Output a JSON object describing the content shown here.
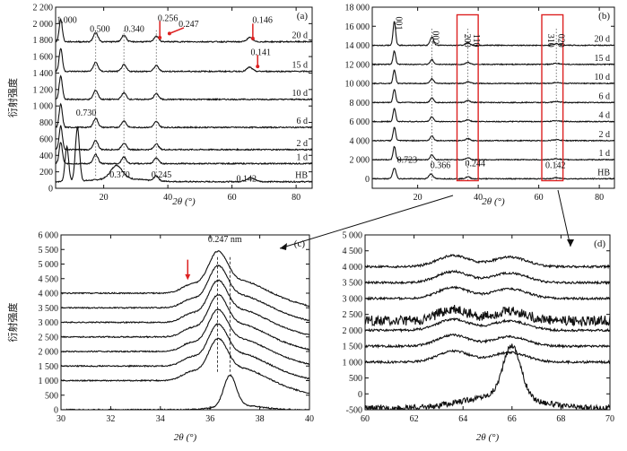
{
  "chart_data": [
    {
      "panel": "(a)",
      "type": "line",
      "ylabel": "衍射强度",
      "xlabel": "2θ (°)",
      "xlim": [
        5,
        85
      ],
      "ylim": [
        0,
        2200
      ],
      "xticks": [
        20,
        40,
        60,
        80
      ],
      "yticks": [
        0,
        200,
        400,
        600,
        800,
        1000,
        1200,
        1400,
        1600,
        1800,
        2000,
        2200
      ],
      "ytick_labels": [
        "0",
        "200",
        "400",
        "600",
        "800",
        "1 000",
        "1 200",
        "1 400",
        "1 600",
        "1 800",
        "2 000",
        "2 200"
      ],
      "series": [
        {
          "name": "HB",
          "offset": 80,
          "peaks": [
            [
              8.5,
              420,
              0.8
            ],
            [
              11.8,
              650,
              0.9
            ],
            [
              24,
              160,
              2.5
            ],
            [
              36.4,
              60,
              1
            ],
            [
              65.8,
              45,
              2
            ]
          ]
        },
        {
          "name": "1 d",
          "offset": 300,
          "peaks": [
            [
              6.6,
              260,
              0.7
            ],
            [
              17.5,
              110,
              1
            ],
            [
              26.3,
              80,
              1
            ],
            [
              36.4,
              70,
              1
            ]
          ]
        },
        {
          "name": "2 d",
          "offset": 470,
          "peaks": [
            [
              6.6,
              290,
              0.7
            ],
            [
              17.5,
              110,
              1
            ],
            [
              26.3,
              80,
              1
            ],
            [
              36.4,
              70,
              1
            ]
          ]
        },
        {
          "name": "6 d",
          "offset": 740,
          "peaks": [
            [
              6.6,
              280,
              0.7
            ],
            [
              17.5,
              110,
              1
            ],
            [
              26.3,
              80,
              1
            ],
            [
              36.4,
              70,
              1
            ]
          ]
        },
        {
          "name": "10 d",
          "offset": 1080,
          "peaks": [
            [
              6.6,
              280,
              0.7
            ],
            [
              17.5,
              110,
              1
            ],
            [
              26.3,
              80,
              1
            ],
            [
              36.4,
              70,
              1
            ]
          ]
        },
        {
          "name": "15 d",
          "offset": 1420,
          "peaks": [
            [
              6.6,
              280,
              0.7
            ],
            [
              17.5,
              110,
              1
            ],
            [
              26.3,
              80,
              1
            ],
            [
              36.4,
              70,
              1
            ],
            [
              65.5,
              50,
              1.2
            ]
          ]
        },
        {
          "name": "20 d",
          "offset": 1780,
          "peaks": [
            [
              6.6,
              270,
              0.7
            ],
            [
              17.5,
              110,
              1
            ],
            [
              26.3,
              80,
              1
            ],
            [
              36.4,
              70,
              1
            ],
            [
              65.5,
              50,
              1.2
            ]
          ]
        }
      ],
      "annotations": [
        {
          "text": "1.000",
          "x": 8.5,
          "y": 2010
        },
        {
          "text": "0.500",
          "x": 18.8,
          "y": 1900
        },
        {
          "text": "0.340",
          "x": 29.5,
          "y": 1900
        },
        {
          "text": "0.256",
          "x": 40,
          "y": 2030
        },
        {
          "text": "0.247",
          "x": 46.5,
          "y": 1960
        },
        {
          "text": "0.146",
          "x": 69.5,
          "y": 2010
        },
        {
          "text": "0.141",
          "x": 69,
          "y": 1620
        },
        {
          "text": "0.730",
          "x": 14.5,
          "y": 880
        },
        {
          "text": "0.370",
          "x": 25,
          "y": 130
        },
        {
          "text": "0.245",
          "x": 38,
          "y": 130
        },
        {
          "text": "0.142",
          "x": 64.5,
          "y": 80
        }
      ]
    },
    {
      "panel": "(b)",
      "type": "line",
      "xlabel": "2θ (°)",
      "xlim": [
        5,
        85
      ],
      "ylim": [
        -1000,
        18000
      ],
      "xticks": [
        20,
        40,
        60,
        80
      ],
      "yticks": [
        0,
        2000,
        4000,
        6000,
        8000,
        10000,
        12000,
        14000,
        16000,
        18000
      ],
      "ytick_labels": [
        "0",
        "2 000",
        "4 000",
        "6 000",
        "8 000",
        "10 000",
        "12 000",
        "14 000",
        "16 000",
        "18 000"
      ],
      "series": [
        {
          "name": "HB",
          "offset": 0,
          "peaks": [
            [
              12.3,
              1100,
              0.8
            ],
            [
              24.4,
              500,
              1
            ],
            [
              36.6,
              200,
              1
            ],
            [
              65.8,
              100,
              1.5
            ]
          ]
        },
        {
          "name": "1 d",
          "offset": 2000,
          "peaks": [
            [
              12.3,
              1400,
              0.6
            ],
            [
              24.7,
              500,
              0.8
            ],
            [
              36.6,
              200,
              1
            ],
            [
              65.8,
              100,
              1.5
            ]
          ]
        },
        {
          "name": "2 d",
          "offset": 4000,
          "peaks": [
            [
              12.3,
              1400,
              0.6
            ],
            [
              24.7,
              500,
              0.8
            ],
            [
              36.6,
              200,
              1
            ],
            [
              65.8,
              100,
              1.5
            ]
          ]
        },
        {
          "name": "4 d",
          "offset": 6000,
          "peaks": [
            [
              12.3,
              1400,
              0.6
            ],
            [
              24.7,
              500,
              0.8
            ],
            [
              36.6,
              200,
              1
            ],
            [
              65.8,
              100,
              1.5
            ]
          ]
        },
        {
          "name": "6 d",
          "offset": 8000,
          "peaks": [
            [
              12.3,
              1400,
              0.6
            ],
            [
              24.7,
              500,
              0.8
            ],
            [
              36.6,
              200,
              1
            ],
            [
              65.8,
              100,
              1.5
            ]
          ]
        },
        {
          "name": "10 d",
          "offset": 10000,
          "peaks": [
            [
              12.3,
              1400,
              0.6
            ],
            [
              24.7,
              500,
              0.8
            ],
            [
              36.6,
              200,
              1
            ],
            [
              65.8,
              100,
              1.5
            ]
          ]
        },
        {
          "name": "15 d",
          "offset": 12000,
          "peaks": [
            [
              12.3,
              1400,
              0.6
            ],
            [
              24.7,
              500,
              0.8
            ],
            [
              36.6,
              200,
              1
            ],
            [
              65.8,
              100,
              1.5
            ]
          ]
        },
        {
          "name": "20 d",
          "offset": 14000,
          "peaks": [
            [
              12.3,
              2500,
              0.6
            ],
            [
              24.7,
              900,
              0.8
            ],
            [
              36.6,
              300,
              1
            ],
            [
              65.8,
              150,
              1.5
            ]
          ]
        }
      ],
      "annotations": [
        {
          "text": "001",
          "x": 12.8,
          "y": 16300,
          "rotate": true
        },
        {
          "text": "002",
          "x": 25,
          "y": 14800,
          "rotate": true
        },
        {
          "text": "200",
          "x": 35.5,
          "y": 14500,
          "rotate": true
        },
        {
          "text": "110",
          "x": 38.5,
          "y": 14500,
          "rotate": true
        },
        {
          "text": "310",
          "x": 63,
          "y": 14500,
          "rotate": true
        },
        {
          "text": "020",
          "x": 66.5,
          "y": 14500,
          "rotate": true
        },
        {
          "text": "0.723",
          "x": 16.5,
          "y": 1700
        },
        {
          "text": "0.366",
          "x": 27.5,
          "y": 1100
        },
        {
          "text": "0.244",
          "x": 39,
          "y": 1300
        },
        {
          "text": "0.142",
          "x": 65.5,
          "y": 1100
        }
      ],
      "boxes": [
        [
          33,
          40
        ],
        [
          61,
          68
        ]
      ]
    },
    {
      "panel": "(c)",
      "type": "line",
      "xlabel": "2θ (°)",
      "ylabel": "衍射强度",
      "xlim": [
        30,
        40
      ],
      "ylim": [
        0,
        6000
      ],
      "xticks": [
        30,
        32,
        34,
        36,
        38,
        40
      ],
      "yticks": [
        0,
        500,
        1000,
        1500,
        2000,
        2500,
        3000,
        3500,
        4000,
        4500,
        5000,
        5500,
        6000
      ],
      "ytick_labels": [
        "0",
        "500",
        "1 000",
        "1 500",
        "2 000",
        "2 500",
        "3 000",
        "3 500",
        "4 000",
        "4 500",
        "5 000",
        "5 500",
        "6 000"
      ],
      "annotation": "0.247 nm",
      "annotation_x": 36.6,
      "annotation_y": 5750,
      "arrow_x": 35.1,
      "series_offsets": [
        0,
        1000,
        1500,
        2000,
        2500,
        3000,
        3500,
        4000
      ],
      "hb_peak": [
        36.8,
        1050
      ]
    },
    {
      "panel": "(d)",
      "type": "line",
      "xlabel": "2θ (°)",
      "xlim": [
        60,
        70
      ],
      "ylim": [
        -500,
        5000
      ],
      "xticks": [
        60,
        62,
        64,
        66,
        68,
        70
      ],
      "yticks": [
        -500,
        0,
        500,
        1000,
        1500,
        2000,
        2500,
        3000,
        3500,
        4000,
        4500,
        5000
      ],
      "ytick_labels": [
        "-500",
        "0",
        "500",
        "1 000",
        "1 500",
        "2 000",
        "2 500",
        "3 000",
        "3 500",
        "4 000",
        "4 500",
        "5 000"
      ],
      "series_offsets": [
        -450,
        1000,
        1500,
        2000,
        2300,
        3000,
        3500,
        4000
      ],
      "hb_peak": [
        66,
        1600
      ]
    }
  ]
}
